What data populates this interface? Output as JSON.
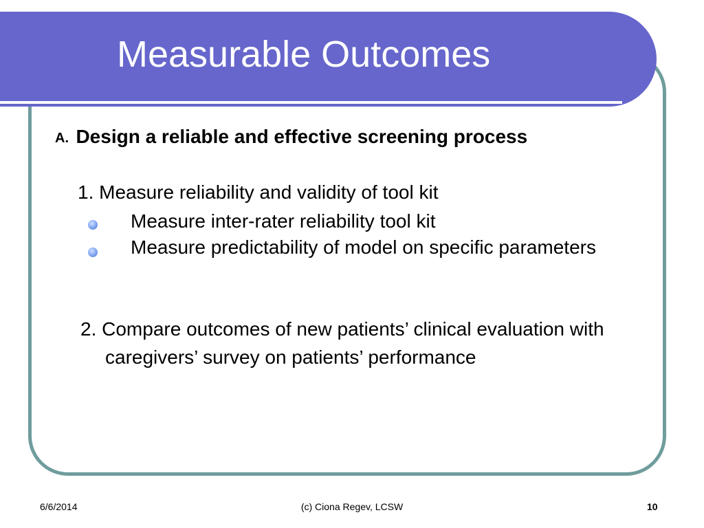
{
  "slide": {
    "title": "Measurable Outcomes",
    "heading_marker": "A.",
    "heading": "Design a reliable and effective screening process",
    "item_1": "1. Measure reliability and validity of tool kit",
    "bullets": [
      {
        "text": "Measure inter-rater reliability tool kit"
      },
      {
        "text": "Measure predictability of model on specific parameters"
      }
    ],
    "item_2": "2. Compare outcomes of new patients’ clinical evaluation with caregivers’ survey on patients’ performance"
  },
  "footer": {
    "date": "6/6/2014",
    "author": "(c) Ciona Regev, LCSW",
    "page_number": "10"
  },
  "colors": {
    "title_bar": "#6666cc",
    "frame_border": "#6f9c9c",
    "bullet": "#7fa4f0"
  }
}
